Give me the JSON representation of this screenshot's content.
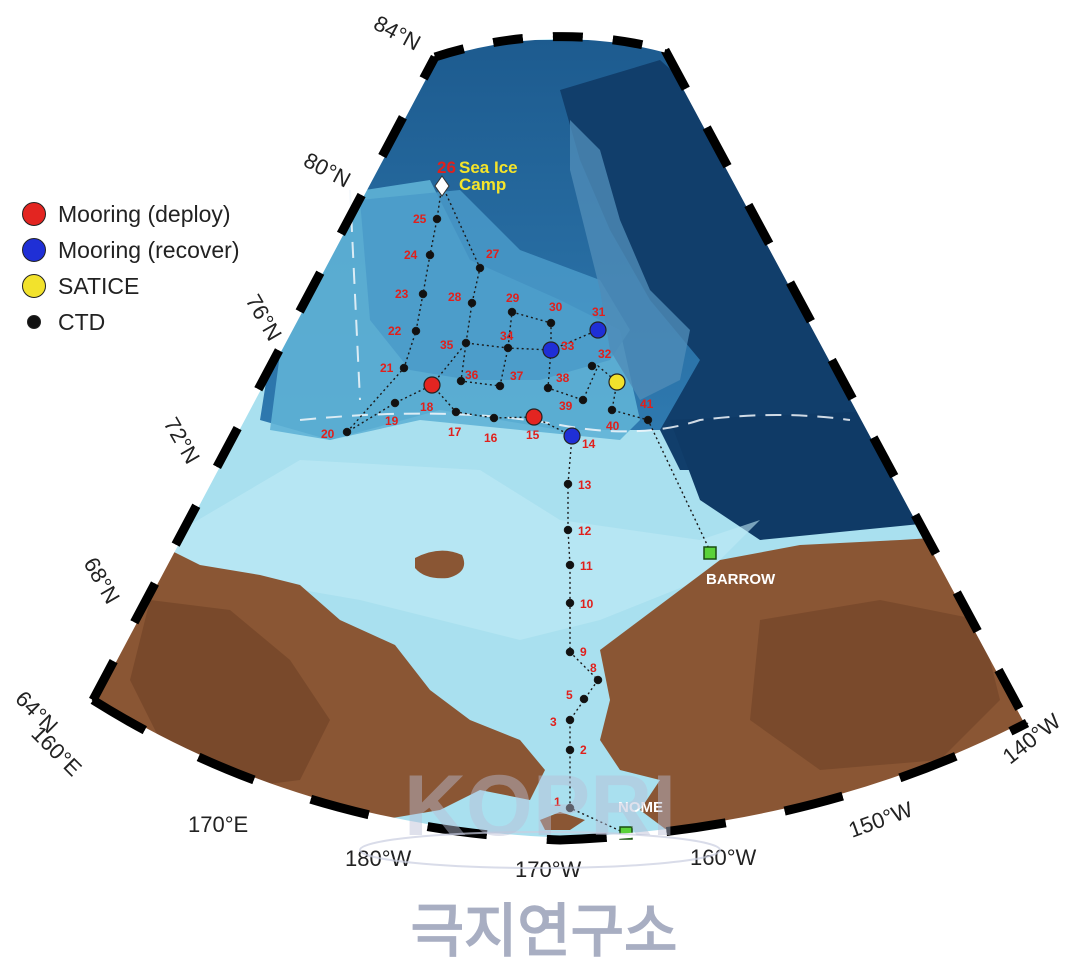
{
  "legend": {
    "items": [
      {
        "label": "Mooring (deploy)",
        "color": "#e32521"
      },
      {
        "label": "Mooring (recover)",
        "color": "#1f2fd6"
      },
      {
        "label": "SATICE",
        "color": "#f2e22c"
      },
      {
        "label": "CTD",
        "color": "#111111"
      }
    ]
  },
  "axes": {
    "lat_labels": [
      "84°N",
      "80°N",
      "76°N",
      "72°N",
      "68°N",
      "64°N"
    ],
    "lon_labels": [
      "160°E",
      "170°E",
      "180°W",
      "170°W",
      "160°W",
      "150°W",
      "140°W"
    ]
  },
  "places": {
    "barrow": "BARROW",
    "nome": "NOME",
    "camp_number": "26",
    "camp_line1": "Sea Ice",
    "camp_line2": "Camp"
  },
  "colors": {
    "land": "#8a5634",
    "shelf": "#a9e0ef",
    "slope": "#6fbfdc",
    "deep": "#2a6da0",
    "basin": "#123f6b",
    "station_label": "#e0201c",
    "camp_label": "#f5e42a"
  },
  "stations": [
    {
      "id": "1",
      "type": "CTD"
    },
    {
      "id": "2",
      "type": "CTD"
    },
    {
      "id": "3",
      "type": "CTD"
    },
    {
      "id": "5",
      "type": "CTD"
    },
    {
      "id": "8",
      "type": "CTD"
    },
    {
      "id": "9",
      "type": "CTD"
    },
    {
      "id": "10",
      "type": "CTD"
    },
    {
      "id": "11",
      "type": "CTD"
    },
    {
      "id": "12",
      "type": "CTD"
    },
    {
      "id": "13",
      "type": "CTD"
    },
    {
      "id": "14",
      "type": "Mooring (recover)"
    },
    {
      "id": "15",
      "type": "Mooring (deploy)"
    },
    {
      "id": "16",
      "type": "CTD"
    },
    {
      "id": "17",
      "type": "CTD"
    },
    {
      "id": "18",
      "type": "Mooring (deploy)"
    },
    {
      "id": "19",
      "type": "CTD"
    },
    {
      "id": "20",
      "type": "CTD"
    },
    {
      "id": "21",
      "type": "CTD"
    },
    {
      "id": "22",
      "type": "CTD"
    },
    {
      "id": "23",
      "type": "CTD"
    },
    {
      "id": "24",
      "type": "CTD"
    },
    {
      "id": "25",
      "type": "CTD"
    },
    {
      "id": "27",
      "type": "CTD"
    },
    {
      "id": "28",
      "type": "CTD"
    },
    {
      "id": "29",
      "type": "CTD"
    },
    {
      "id": "30",
      "type": "CTD"
    },
    {
      "id": "31",
      "type": "Mooring (recover)"
    },
    {
      "id": "32",
      "type": "CTD"
    },
    {
      "id": "33",
      "type": "Mooring (recover)"
    },
    {
      "id": "34",
      "type": "CTD"
    },
    {
      "id": "35",
      "type": "CTD"
    },
    {
      "id": "36",
      "type": "CTD"
    },
    {
      "id": "37",
      "type": "CTD"
    },
    {
      "id": "38",
      "type": "CTD"
    },
    {
      "id": "39",
      "type": "CTD"
    },
    {
      "id": "40",
      "type": "CTD"
    },
    {
      "id": "41",
      "type": "CTD"
    },
    {
      "id": "SATICE",
      "type": "SATICE"
    }
  ],
  "watermark": {
    "logo_text": "KOPRI",
    "korean_text": "극지연구소"
  }
}
